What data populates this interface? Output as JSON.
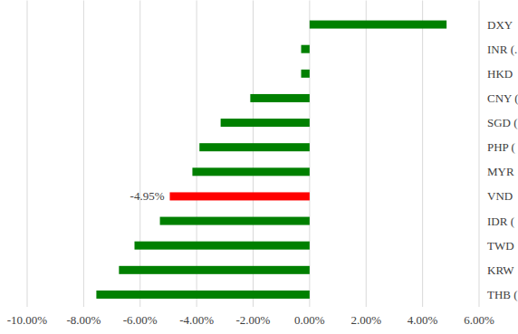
{
  "chart_data": {
    "type": "bar",
    "orientation": "horizontal",
    "categories": [
      "DXY",
      "INR (.",
      "HKD",
      "CNY (",
      "SGD (",
      "PHP (",
      "MYR",
      "VND",
      "IDR (",
      "TWD",
      "KRW",
      "THB ("
    ],
    "values": [
      4.85,
      -0.3,
      -0.3,
      -2.1,
      -3.15,
      -3.9,
      -4.15,
      -4.95,
      -5.3,
      -6.2,
      -6.75,
      -7.55
    ],
    "value_labels": [
      null,
      null,
      null,
      null,
      null,
      null,
      null,
      "-4.95%",
      null,
      null,
      null,
      null
    ],
    "colors": [
      "#008000",
      "#008000",
      "#008000",
      "#008000",
      "#008000",
      "#008000",
      "#008000",
      "#ff0000",
      "#008000",
      "#008000",
      "#008000",
      "#008000"
    ],
    "xlim": [
      -10,
      6
    ],
    "xticks": [
      {
        "value": -10,
        "label": "-10.00%"
      },
      {
        "value": -8,
        "label": "-8.00%"
      },
      {
        "value": -6,
        "label": "-6.00%"
      },
      {
        "value": -4,
        "label": "-4.00%"
      },
      {
        "value": -2,
        "label": "-2.00%"
      },
      {
        "value": 0,
        "label": "0.00%"
      },
      {
        "value": 2,
        "label": "2.00%"
      },
      {
        "value": 4,
        "label": "4.00%"
      },
      {
        "value": 6,
        "label": "6.00%"
      }
    ],
    "grid": true
  }
}
